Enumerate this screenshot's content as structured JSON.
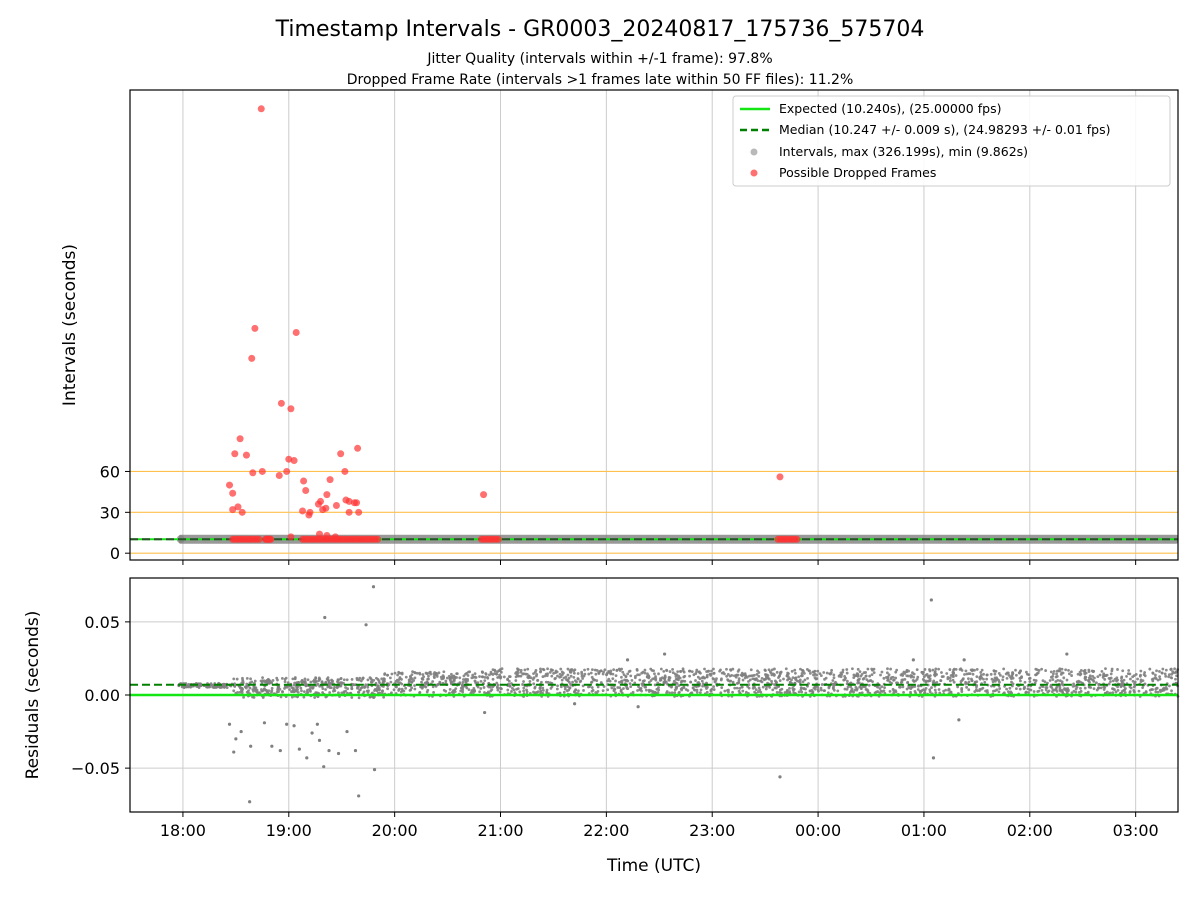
{
  "chart_data": {
    "type": "scatter",
    "title": "Timestamp Intervals - GR0003_20240817_175736_575704",
    "subtitle_1": "Jitter Quality (intervals within +/-1 frame): 97.8%",
    "subtitle_2": "Dropped Frame Rate (intervals >1 frames late within 50 FF files): 11.2%",
    "xlabel": "Time (UTC)",
    "x_ticks": [
      "18:00",
      "19:00",
      "20:00",
      "21:00",
      "22:00",
      "23:00",
      "00:00",
      "01:00",
      "02:00",
      "03:00"
    ],
    "x_range_hours_utc": [
      17.5,
      27.4
    ],
    "top_panel": {
      "ylabel": "Intervals (seconds)",
      "y_ticks": [
        0,
        30,
        60
      ],
      "ylim": [
        -5,
        340
      ],
      "threshold_lines_y": [
        0,
        30,
        60
      ],
      "threshold_color": "#ffc04d",
      "expected_value": 10.24,
      "median_value": 10.247,
      "intervals_band": {
        "x_start": 17.96,
        "x_end": 27.4,
        "y": 10.247
      },
      "dropped_frames": [
        {
          "x": 18.74,
          "y": 326.2
        },
        {
          "x": 18.68,
          "y": 165
        },
        {
          "x": 19.07,
          "y": 162
        },
        {
          "x": 18.65,
          "y": 143
        },
        {
          "x": 18.93,
          "y": 110
        },
        {
          "x": 19.02,
          "y": 106
        },
        {
          "x": 18.54,
          "y": 84
        },
        {
          "x": 19.65,
          "y": 77
        },
        {
          "x": 19.49,
          "y": 73
        },
        {
          "x": 18.49,
          "y": 73
        },
        {
          "x": 18.6,
          "y": 72
        },
        {
          "x": 19.0,
          "y": 69
        },
        {
          "x": 19.05,
          "y": 68
        },
        {
          "x": 18.75,
          "y": 60
        },
        {
          "x": 18.98,
          "y": 60
        },
        {
          "x": 19.53,
          "y": 60
        },
        {
          "x": 18.66,
          "y": 59
        },
        {
          "x": 18.91,
          "y": 57
        },
        {
          "x": 19.39,
          "y": 54
        },
        {
          "x": 19.14,
          "y": 53
        },
        {
          "x": 18.44,
          "y": 50
        },
        {
          "x": 19.16,
          "y": 46
        },
        {
          "x": 18.47,
          "y": 44
        },
        {
          "x": 19.36,
          "y": 43
        },
        {
          "x": 19.54,
          "y": 39
        },
        {
          "x": 19.57,
          "y": 38
        },
        {
          "x": 19.62,
          "y": 37
        },
        {
          "x": 19.64,
          "y": 37
        },
        {
          "x": 19.3,
          "y": 38
        },
        {
          "x": 19.28,
          "y": 36
        },
        {
          "x": 19.45,
          "y": 35
        },
        {
          "x": 18.52,
          "y": 34
        },
        {
          "x": 18.47,
          "y": 32
        },
        {
          "x": 19.13,
          "y": 31
        },
        {
          "x": 18.56,
          "y": 30
        },
        {
          "x": 19.35,
          "y": 33
        },
        {
          "x": 19.32,
          "y": 32
        },
        {
          "x": 19.2,
          "y": 30
        },
        {
          "x": 19.19,
          "y": 28
        },
        {
          "x": 19.57,
          "y": 30
        },
        {
          "x": 19.66,
          "y": 30
        },
        {
          "x": 19.29,
          "y": 14
        },
        {
          "x": 19.36,
          "y": 13
        },
        {
          "x": 19.02,
          "y": 12
        },
        {
          "x": 19.44,
          "y": 12
        },
        {
          "x": 20.84,
          "y": 43
        },
        {
          "x": 23.64,
          "y": 56
        }
      ],
      "dropped_clusters": [
        {
          "x_start": 18.47,
          "x_end": 18.72,
          "y": 10.2
        },
        {
          "x_start": 18.78,
          "x_end": 18.83,
          "y": 10.2
        },
        {
          "x_start": 19.13,
          "x_end": 19.84,
          "y": 10.2
        },
        {
          "x_start": 20.82,
          "x_end": 20.98,
          "y": 10.2
        },
        {
          "x_start": 23.62,
          "x_end": 23.8,
          "y": 10.2
        }
      ]
    },
    "bottom_panel": {
      "ylabel": "Residuals (seconds)",
      "y_ticks": [
        -0.05,
        0.0,
        0.05
      ],
      "y_tick_labels": [
        "−0.05",
        "0.00",
        "0.05"
      ],
      "ylim": [
        -0.08,
        0.08
      ],
      "expected_residual": 0.0,
      "median_residual": 0.007,
      "outliers": [
        {
          "x": 19.8,
          "y": 0.074
        },
        {
          "x": 19.34,
          "y": 0.053
        },
        {
          "x": 19.73,
          "y": 0.048
        },
        {
          "x": 25.07,
          "y": 0.065
        },
        {
          "x": 22.55,
          "y": 0.028
        },
        {
          "x": 26.35,
          "y": 0.028
        },
        {
          "x": 22.2,
          "y": 0.024
        },
        {
          "x": 25.38,
          "y": 0.024
        },
        {
          "x": 24.9,
          "y": 0.024
        },
        {
          "x": 18.44,
          "y": -0.02
        },
        {
          "x": 18.48,
          "y": -0.039
        },
        {
          "x": 18.5,
          "y": -0.03
        },
        {
          "x": 18.55,
          "y": -0.025
        },
        {
          "x": 18.64,
          "y": -0.035
        },
        {
          "x": 18.77,
          "y": -0.019
        },
        {
          "x": 18.84,
          "y": -0.035
        },
        {
          "x": 18.92,
          "y": -0.038
        },
        {
          "x": 18.98,
          "y": -0.02
        },
        {
          "x": 19.05,
          "y": -0.021
        },
        {
          "x": 19.1,
          "y": -0.037
        },
        {
          "x": 19.17,
          "y": -0.043
        },
        {
          "x": 19.22,
          "y": -0.026
        },
        {
          "x": 19.29,
          "y": -0.031
        },
        {
          "x": 19.33,
          "y": -0.049
        },
        {
          "x": 19.38,
          "y": -0.038
        },
        {
          "x": 19.47,
          "y": -0.04
        },
        {
          "x": 19.55,
          "y": -0.025
        },
        {
          "x": 19.63,
          "y": -0.038
        },
        {
          "x": 19.66,
          "y": -0.069
        },
        {
          "x": 19.81,
          "y": -0.051
        },
        {
          "x": 18.63,
          "y": -0.073
        },
        {
          "x": 23.64,
          "y": -0.056
        },
        {
          "x": 25.09,
          "y": -0.043
        },
        {
          "x": 25.33,
          "y": -0.017
        },
        {
          "x": 19.27,
          "y": -0.02
        },
        {
          "x": 21.7,
          "y": -0.006
        },
        {
          "x": 22.3,
          "y": -0.008
        },
        {
          "x": 20.85,
          "y": -0.012
        }
      ]
    },
    "legend": {
      "placement": "top-right",
      "entries": [
        {
          "label": "Expected (10.240s), (25.00000 fps)",
          "style": "solid",
          "color": "#14e614"
        },
        {
          "label": "Median (10.247 +/- 0.009 s), (24.98293 +/- 0.01 fps)",
          "style": "dashed",
          "color": "#008000"
        },
        {
          "label": "Intervals, max (326.199s), min (9.862s)",
          "style": "marker",
          "color": "#808080"
        },
        {
          "label": "Possible Dropped Frames",
          "style": "marker",
          "color": "#ff3333"
        }
      ]
    },
    "grid": true,
    "colors": {
      "expected": "#14e614",
      "median": "#008000",
      "intervals": "#808080",
      "dropped": "#ff3333",
      "grid": "#cccccc"
    }
  }
}
